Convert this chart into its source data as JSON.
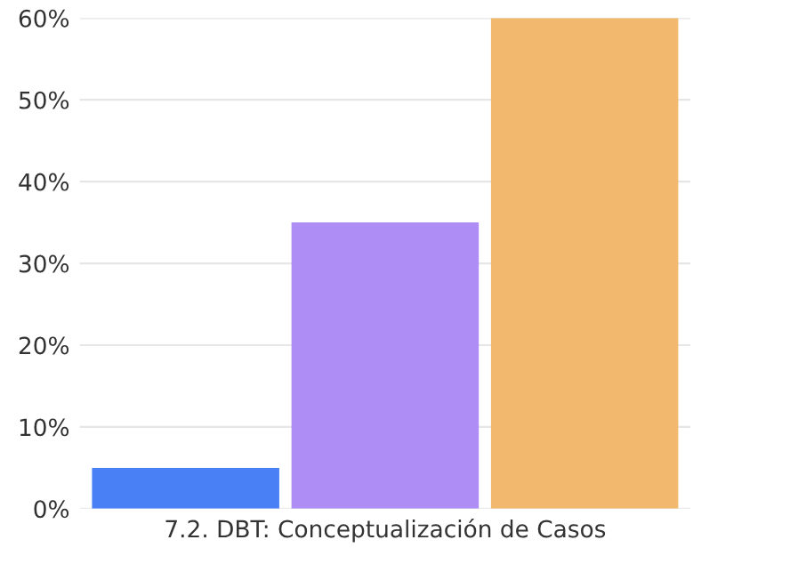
{
  "chart_data": {
    "type": "bar",
    "categories": [
      "7.2. DBT: Conceptualización de Casos"
    ],
    "series": [
      {
        "color": "#4a80f5",
        "values": [
          5
        ]
      },
      {
        "color": "#ae8ef4",
        "values": [
          35
        ]
      },
      {
        "color": "#f2b86e",
        "values": [
          60
        ]
      }
    ],
    "ylim": [
      0,
      60
    ],
    "yticks": [
      {
        "value": 0,
        "label": "0%"
      },
      {
        "value": 10,
        "label": "10%"
      },
      {
        "value": 20,
        "label": "20%"
      },
      {
        "value": 30,
        "label": "30%"
      },
      {
        "value": 40,
        "label": "40%"
      },
      {
        "value": 50,
        "label": "50%"
      },
      {
        "value": 60,
        "label": "60%"
      }
    ],
    "grid": "y",
    "legend": false
  }
}
